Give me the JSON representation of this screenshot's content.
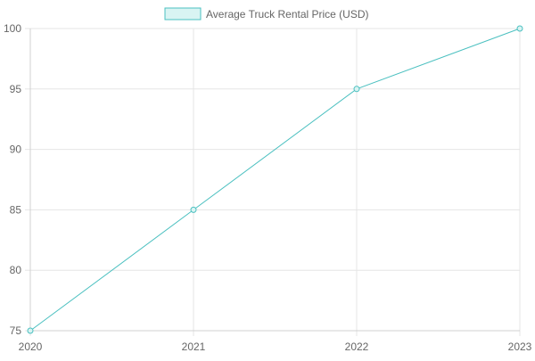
{
  "chart_data": {
    "type": "line",
    "title": "",
    "xlabel": "",
    "ylabel": "",
    "categories": [
      "2020",
      "2021",
      "2022",
      "2023"
    ],
    "series": [
      {
        "name": "Average Truck Rental Price (USD)",
        "values": [
          75,
          85,
          95,
          100
        ],
        "color": "#4bc0c0",
        "fill": "#d9f4f3"
      }
    ],
    "ylim": [
      75,
      100
    ],
    "yticks": [
      75,
      80,
      85,
      90,
      95,
      100
    ],
    "grid": true,
    "legend_position": "top-center"
  },
  "colors": {
    "grid": "#e5e5e5",
    "axis": "#d0d0d0",
    "tick_text": "#666666",
    "legend_text": "#666666"
  }
}
